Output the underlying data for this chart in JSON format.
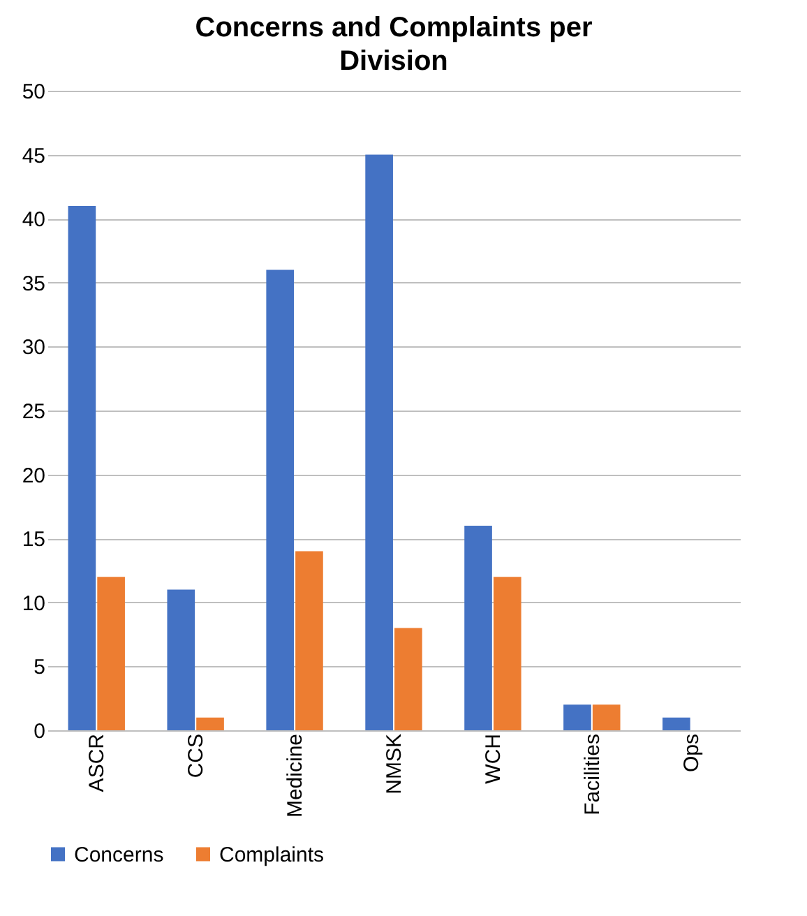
{
  "chart_data": {
    "type": "bar",
    "title": "Concerns and Complaints per Division",
    "categories": [
      "ASCR",
      "CCS",
      "Medicine",
      "NMSK",
      "WCH",
      "Facilities",
      "Ops"
    ],
    "series": [
      {
        "name": "Concerns",
        "color": "#4472c4",
        "values": [
          41,
          11,
          36,
          45,
          16,
          2,
          1
        ]
      },
      {
        "name": "Complaints",
        "color": "#ed7d31",
        "values": [
          12,
          1,
          14,
          8,
          12,
          2,
          0
        ]
      }
    ],
    "ylim": [
      0,
      50
    ],
    "yticks": [
      0,
      5,
      10,
      15,
      20,
      25,
      30,
      35,
      40,
      45,
      50
    ],
    "grid": "y",
    "legend": "bottom"
  }
}
